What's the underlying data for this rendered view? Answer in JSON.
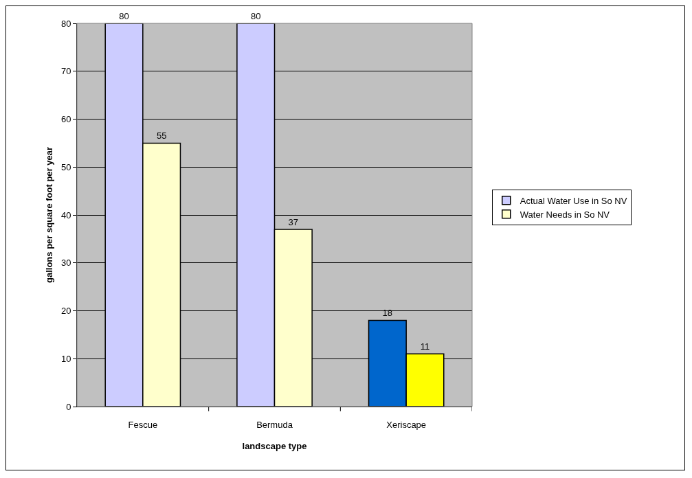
{
  "chart_data": {
    "type": "bar",
    "xlabel": "landscape type",
    "ylabel": "gallons per square foot per year",
    "categories": [
      "Fescue",
      "Bermuda",
      "Xeriscape"
    ],
    "series": [
      {
        "name": "Actual Water Use in So NV",
        "colors": [
          "#ccccff",
          "#ccccff",
          "#0066cc"
        ],
        "values": [
          80,
          80,
          18
        ]
      },
      {
        "name": "Water Needs in So NV",
        "colors": [
          "#ffffcc",
          "#ffffcc",
          "#ffff00"
        ],
        "values": [
          55,
          37,
          11
        ]
      }
    ],
    "ylim": [
      0,
      80
    ],
    "yticks": [
      0,
      10,
      20,
      30,
      40,
      50,
      60,
      70,
      80
    ],
    "grid": "y",
    "legend": "right",
    "data_labels": true
  }
}
